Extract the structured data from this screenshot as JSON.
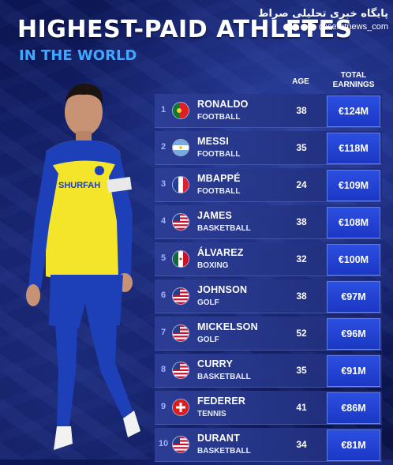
{
  "title": "HIGHEST-PAID ATHLETES",
  "subtitle": "IN THE WORLD",
  "watermark": {
    "line1": "پایگاه خبری تحلیلی صراط",
    "line2": "@seratnews_com"
  },
  "columns": {
    "age": "AGE",
    "earnings": "TOTAL EARNINGS"
  },
  "player": {
    "jersey_text": "SHURFAH"
  },
  "colors": {
    "accent": "#3ea7ff",
    "earnings_box": "#2c4fe0",
    "background": "#14206a"
  },
  "athletes": [
    {
      "rank": "1",
      "name": "RONALDO",
      "sport": "FOOTBALL",
      "age": "38",
      "earnings": "€124M",
      "flag": "portugal"
    },
    {
      "rank": "2",
      "name": "MESSI",
      "sport": "FOOTBALL",
      "age": "35",
      "earnings": "€118M",
      "flag": "argentina"
    },
    {
      "rank": "3",
      "name": "MBAPPÉ",
      "sport": "FOOTBALL",
      "age": "24",
      "earnings": "€109M",
      "flag": "france"
    },
    {
      "rank": "4",
      "name": "JAMES",
      "sport": "BASKETBALL",
      "age": "38",
      "earnings": "€108M",
      "flag": "usa"
    },
    {
      "rank": "5",
      "name": "ÁLVAREZ",
      "sport": "BOXING",
      "age": "32",
      "earnings": "€100M",
      "flag": "mexico"
    },
    {
      "rank": "6",
      "name": "JOHNSON",
      "sport": "GOLF",
      "age": "38",
      "earnings": "€97M",
      "flag": "usa"
    },
    {
      "rank": "7",
      "name": "MICKELSON",
      "sport": "GOLF",
      "age": "52",
      "earnings": "€96M",
      "flag": "usa"
    },
    {
      "rank": "8",
      "name": "CURRY",
      "sport": "BASKETBALL",
      "age": "35",
      "earnings": "€91M",
      "flag": "usa"
    },
    {
      "rank": "9",
      "name": "FEDERER",
      "sport": "TENNIS",
      "age": "41",
      "earnings": "€86M",
      "flag": "switzerland"
    },
    {
      "rank": "10",
      "name": "DURANT",
      "sport": "BASKETBALL",
      "age": "34",
      "earnings": "€81M",
      "flag": "usa"
    }
  ]
}
